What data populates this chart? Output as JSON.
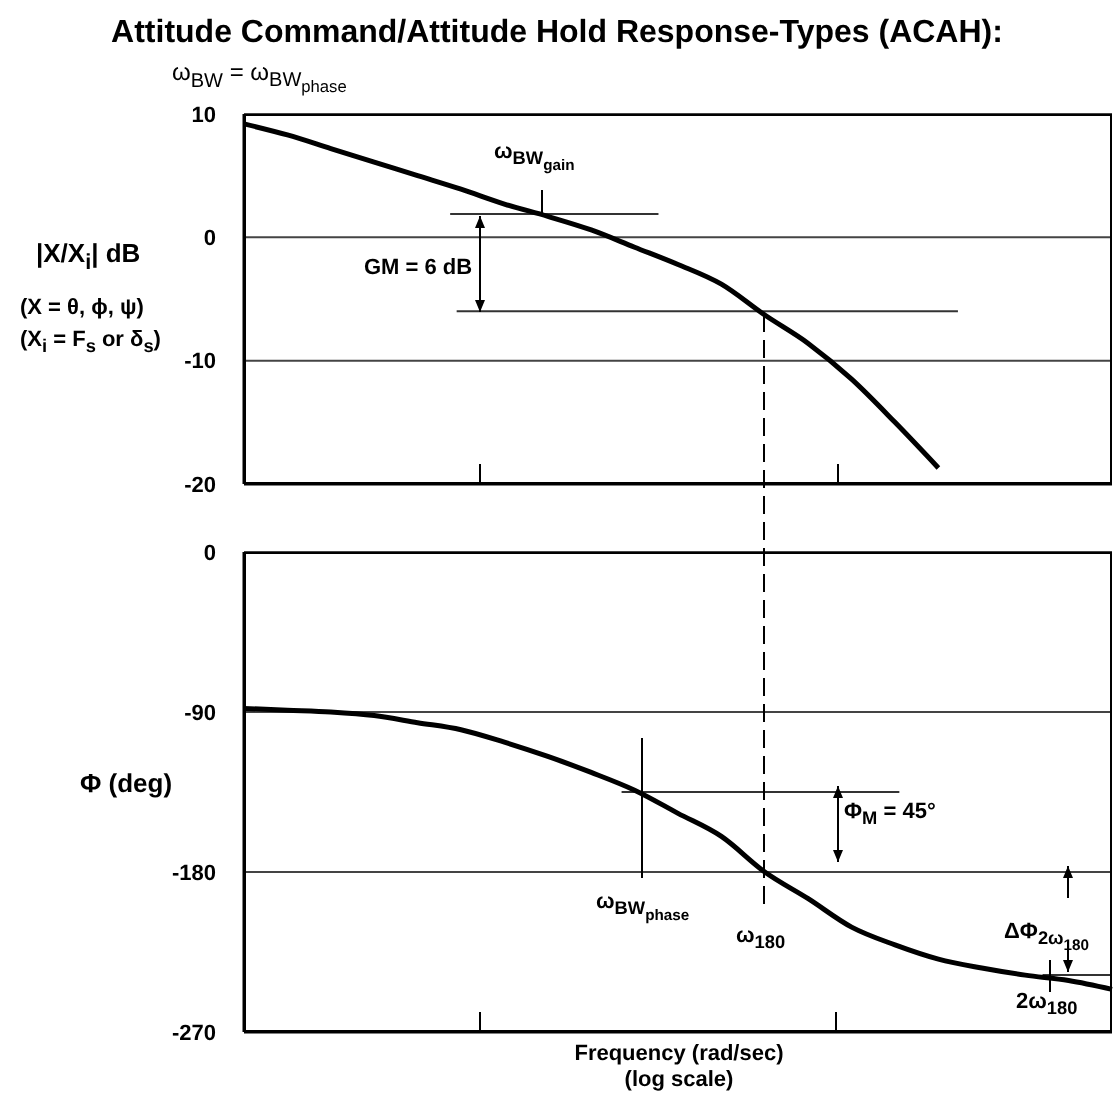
{
  "chart_data": [
    {
      "type": "line",
      "title": "Attitude Command/Attitude Hold Response-Types (ACAH):",
      "subtitle": "ω$_{BW}$ = ω$_{BW}$$_{phase}$",
      "ylabel": "|X/X$_{i}$| dB",
      "categories": [
        null,
        null,
        null,
        null,
        null,
        null,
        null,
        null,
        null,
        null,
        null,
        null,
        null,
        null,
        null,
        null,
        null,
        null,
        null,
        null,
        null
      ],
      "series": [
        {
          "color": "#000000",
          "values": [
            9.2,
            8.3,
            7.2,
            6.1,
            5.0,
            3.9,
            2.7,
            1.7,
            0.6,
            -0.8,
            -2.2,
            -3.8,
            -6.3,
            -8.6,
            -11.5,
            -15,
            -18.7,
            null,
            null,
            null,
            null
          ]
        }
      ],
      "ylim": [
        -20,
        10
      ],
      "yticks": [
        10,
        0,
        -10,
        -20
      ],
      "grid": "y",
      "tick_labels": "y",
      "marker": "none",
      "ref_lines": [
        {
          "axis": "y",
          "value": 1.9,
          "color": "#333333"
        },
        {
          "axis": "y",
          "value": -6,
          "color": "#333333"
        }
      ],
      "annotations": [
        "(X = θ, ϕ, ψ)",
        "(X$_{i}$ = F$_{s}$ or δ$_{s}$)",
        "ω$_{BW}$$_{gain}$",
        "GM = 6 dB"
      ]
    },
    {
      "type": "line",
      "ylabel": "Φ (deg)",
      "xlabel": "Frequency (rad/sec)\n(log scale)",
      "categories": [
        null,
        null,
        null,
        null,
        null,
        null,
        null,
        null,
        null,
        null,
        null,
        null,
        null,
        null,
        null,
        null,
        null,
        null,
        null,
        null,
        null
      ],
      "series": [
        {
          "color": "#000000",
          "values": [
            -88,
            -89,
            -90,
            -92,
            -96,
            -100,
            -107,
            -115,
            -124,
            -134,
            -147,
            -160,
            -180,
            -195,
            -211,
            -221,
            -229,
            -234,
            -238,
            -241,
            -246
          ]
        }
      ],
      "ylim": [
        -270,
        0
      ],
      "yticks": [
        0,
        -90,
        -180,
        -270
      ],
      "grid": "y",
      "tick_labels": "y",
      "marker": "none",
      "ref_lines": [
        {
          "axis": "y",
          "value": -135,
          "color": "#333333"
        },
        {
          "axis": "y",
          "value": -238,
          "color": "#333333"
        }
      ],
      "annotations": [
        "Φ$_{M}$ = 45°",
        "ω$_{BW}$$_{phase}$",
        "ω$_{180}$",
        "ΔΦ$_{2ω}$$_{180}$",
        "2ω$_{180}$"
      ]
    }
  ]
}
